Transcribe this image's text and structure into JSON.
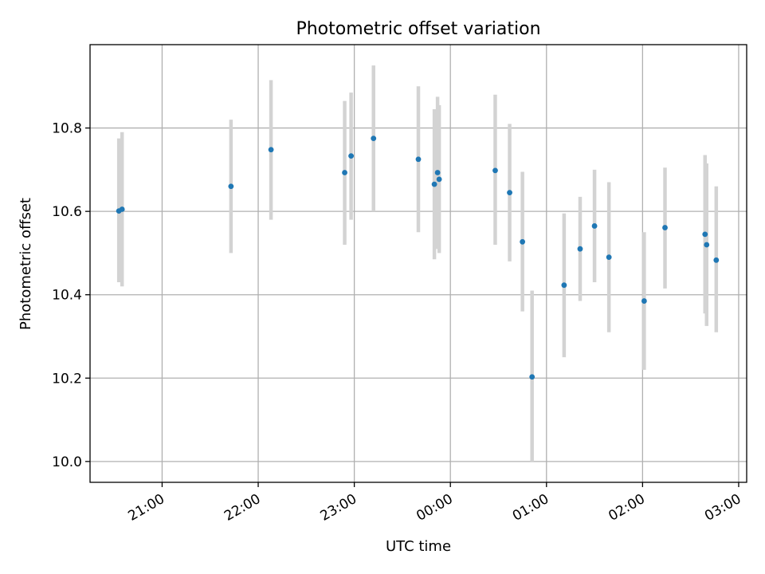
{
  "chart_data": {
    "type": "scatter",
    "title": "Photometric offset variation",
    "xlabel": "UTC time",
    "ylabel": "Photometric offset",
    "x_tick_labels": [
      "21:00",
      "22:00",
      "23:00",
      "00:00",
      "01:00",
      "02:00",
      "03:00"
    ],
    "x_ticks": [
      "21:00",
      "22:00",
      "23:00",
      "00:00",
      "01:00",
      "02:00",
      "03:00"
    ],
    "y_ticks": [
      10.0,
      10.2,
      10.4,
      10.6,
      10.8
    ],
    "y_tick_labels": [
      "10.0",
      "10.2",
      "10.4",
      "10.6",
      "10.8"
    ],
    "xlim": [
      "20:15",
      "03:05"
    ],
    "ylim": [
      9.95,
      11.0
    ],
    "grid": true,
    "colors": {
      "point": "#1f77b4",
      "errorbar": "#d3d3d3"
    },
    "series": [
      {
        "points": [
          {
            "t": "20:33",
            "y": 10.601,
            "lo": 10.43,
            "hi": 10.775
          },
          {
            "t": "20:35",
            "y": 10.605,
            "lo": 10.42,
            "hi": 10.79
          },
          {
            "t": "21:43",
            "y": 10.66,
            "lo": 10.5,
            "hi": 10.82
          },
          {
            "t": "22:08",
            "y": 10.748,
            "lo": 10.58,
            "hi": 10.915
          },
          {
            "t": "22:54",
            "y": 10.693,
            "lo": 10.52,
            "hi": 10.865
          },
          {
            "t": "22:58",
            "y": 10.733,
            "lo": 10.58,
            "hi": 10.885
          },
          {
            "t": "23:12",
            "y": 10.775,
            "lo": 10.6,
            "hi": 10.95
          },
          {
            "t": "23:40",
            "y": 10.725,
            "lo": 10.55,
            "hi": 10.9
          },
          {
            "t": "23:50",
            "y": 10.665,
            "lo": 10.485,
            "hi": 10.845
          },
          {
            "t": "23:52",
            "y": 10.693,
            "lo": 10.51,
            "hi": 10.875
          },
          {
            "t": "23:53",
            "y": 10.677,
            "lo": 10.5,
            "hi": 10.855
          },
          {
            "t": "00:28",
            "y": 10.698,
            "lo": 10.52,
            "hi": 10.88
          },
          {
            "t": "00:37",
            "y": 10.645,
            "lo": 10.48,
            "hi": 10.81
          },
          {
            "t": "00:45",
            "y": 10.527,
            "lo": 10.36,
            "hi": 10.695
          },
          {
            "t": "00:51",
            "y": 10.203,
            "lo": 10.0,
            "hi": 10.41
          },
          {
            "t": "01:11",
            "y": 10.423,
            "lo": 10.25,
            "hi": 10.595
          },
          {
            "t": "01:21",
            "y": 10.51,
            "lo": 10.385,
            "hi": 10.635
          },
          {
            "t": "01:30",
            "y": 10.565,
            "lo": 10.43,
            "hi": 10.7
          },
          {
            "t": "01:39",
            "y": 10.49,
            "lo": 10.31,
            "hi": 10.67
          },
          {
            "t": "02:01",
            "y": 10.385,
            "lo": 10.22,
            "hi": 10.55
          },
          {
            "t": "02:14",
            "y": 10.561,
            "lo": 10.415,
            "hi": 10.705
          },
          {
            "t": "02:39",
            "y": 10.545,
            "lo": 10.355,
            "hi": 10.735
          },
          {
            "t": "02:40",
            "y": 10.52,
            "lo": 10.325,
            "hi": 10.715
          },
          {
            "t": "02:46",
            "y": 10.483,
            "lo": 10.31,
            "hi": 10.66
          }
        ]
      }
    ]
  }
}
